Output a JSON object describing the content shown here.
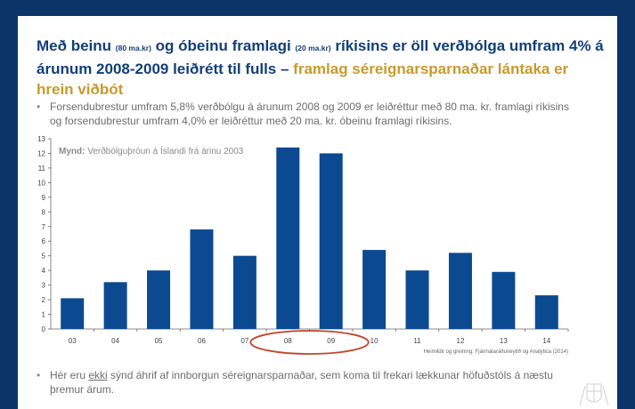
{
  "slide": {
    "title_parts": {
      "a": "Með beinu ",
      "a_small": "(80 ma.kr)",
      "b": " og óbeinu framlagi ",
      "b_small": "(20 ma.kr)",
      "c": " ríkisins er öll verðbólga umfram 4% á árunum 2008-2009 leiðrétt til fulls – ",
      "gold": "framlag séreignarsparnaðar lántaka er hrein viðbót"
    },
    "bullet_1": "Forsendubrestur umfram 5,8% verðbólgu á árunum 2008 og 2009 er leiðréttur með 80 ma. kr. framlagi ríkisins og forsendubrestur umfram 4,0% er leiðréttur með 20 ma. kr. óbeinu framlagi ríkisins.",
    "bullet_2_a": "Hér eru ",
    "bullet_2_u": "ekki",
    "bullet_2_b": " sýnd áhrif af innborgun séreignarsparnaðar, sem koma til frekari lækkunar höfuðstóls á næstu þremur árum.",
    "bullet_symbol": "•"
  },
  "colors": {
    "background": "#0d3468",
    "title": "#123f7a",
    "title_highlight": "#c89a2c",
    "bar": "#0b4a91",
    "highlight_circle": "#c0462a"
  },
  "chart_data": {
    "type": "bar",
    "caption_label": "Mynd:",
    "caption_text": "Verðbólguþróun á Íslandi frá árinu 2003",
    "categories": [
      "03",
      "04",
      "05",
      "06",
      "07",
      "08",
      "09",
      "10",
      "11",
      "12",
      "13",
      "14"
    ],
    "values": [
      2.1,
      3.2,
      4.0,
      6.8,
      5.0,
      12.4,
      12.0,
      5.4,
      4.0,
      5.2,
      3.9,
      2.3
    ],
    "ylim": [
      0,
      13
    ],
    "yticks": [
      0,
      1,
      2,
      3,
      4,
      5,
      6,
      7,
      8,
      9,
      10,
      11,
      12,
      13
    ],
    "source": "Heimildir og greining: Fjármálaráðuneytið og Analytica (2014)",
    "highlighted_categories": [
      "08",
      "09"
    ],
    "grid": false
  }
}
